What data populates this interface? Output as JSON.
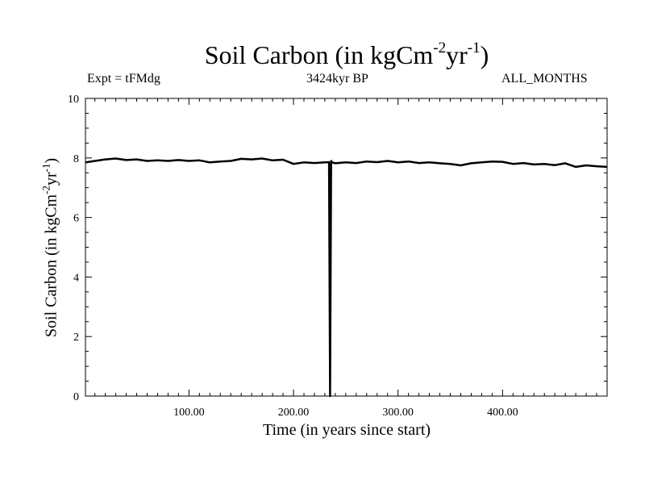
{
  "header": {
    "title_main": "Soil Carbon (in kgCm",
    "title_exp1": "-2",
    "title_mid": "yr",
    "title_exp2": "-1",
    "title_end": ")",
    "expt": "Expt = tFMdg",
    "period": "3424kyr BP",
    "months": "ALL_MONTHS"
  },
  "axes": {
    "xlabel": "Time (in years since start)",
    "ylabel_main": "Soil Carbon (in kgCm",
    "ylabel_exp1": "-2",
    "ylabel_mid": "yr",
    "ylabel_exp2": "-1",
    "ylabel_end": ")"
  },
  "chart_data": {
    "type": "line",
    "title": "Soil Carbon (in kgCm-2yr-1)",
    "xlabel": "Time (in years since start)",
    "ylabel": "Soil Carbon (in kgCm-2yr-1)",
    "xlim": [
      1,
      500
    ],
    "ylim": [
      0,
      10
    ],
    "x_ticks": [
      100,
      200,
      300,
      400
    ],
    "x_tick_labels": [
      "100.00",
      "200.00",
      "300.00",
      "400.00"
    ],
    "y_ticks": [
      0,
      2,
      4,
      6,
      8,
      10
    ],
    "y_tick_labels": [
      "0",
      "2",
      "4",
      "6",
      "8",
      "10"
    ],
    "grid": false,
    "series": [
      {
        "x": [
          1,
          10,
          20,
          30,
          40,
          50,
          60,
          70,
          80,
          90,
          100,
          110,
          120,
          130,
          140,
          150,
          160,
          170,
          180,
          190,
          200,
          210,
          220,
          230,
          234,
          235,
          236,
          237,
          240,
          250,
          260,
          270,
          280,
          290,
          300,
          310,
          320,
          330,
          340,
          350,
          360,
          370,
          380,
          390,
          400,
          410,
          420,
          430,
          440,
          450,
          460,
          470,
          480,
          490,
          500
        ],
        "y": [
          7.85,
          7.9,
          7.95,
          7.98,
          7.93,
          7.95,
          7.9,
          7.92,
          7.9,
          7.93,
          7.9,
          7.92,
          7.85,
          7.88,
          7.9,
          7.97,
          7.95,
          7.98,
          7.92,
          7.94,
          7.8,
          7.85,
          7.83,
          7.85,
          7.86,
          0.0,
          7.9,
          7.85,
          7.82,
          7.85,
          7.83,
          7.88,
          7.86,
          7.9,
          7.85,
          7.88,
          7.83,
          7.85,
          7.82,
          7.8,
          7.75,
          7.82,
          7.85,
          7.88,
          7.87,
          7.8,
          7.83,
          7.78,
          7.8,
          7.76,
          7.82,
          7.7,
          7.75,
          7.72,
          7.7
        ]
      }
    ]
  }
}
